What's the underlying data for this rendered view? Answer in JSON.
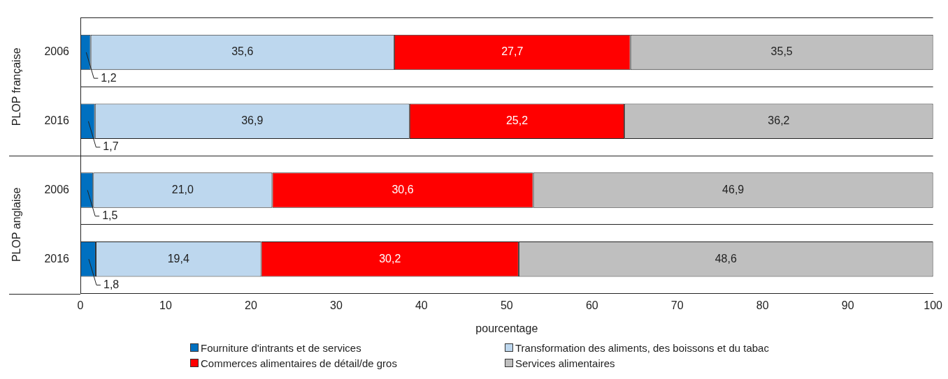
{
  "chart_data": {
    "type": "bar",
    "orientation": "horizontal",
    "stacked": true,
    "categories": [
      "2006",
      "2016",
      "2006",
      "2016"
    ],
    "annotations": [
      "PLOP française",
      "PLOP anglaise"
    ],
    "xlabel": "pourcentage",
    "xlim": [
      0,
      100
    ],
    "xticks": [
      0,
      10,
      20,
      30,
      40,
      50,
      60,
      70,
      80,
      90,
      100
    ],
    "grid": "y",
    "legend": "bottom",
    "series": [
      {
        "name": "Fourniture d'intrants et de services",
        "color": "#0070c0",
        "values": [
          1.2,
          1.7,
          1.5,
          1.8
        ],
        "value_labels": [
          "1,2",
          "1,7",
          "1,5",
          "1,8"
        ]
      },
      {
        "name": "Transformation des aliments, des boissons et du tabac",
        "color": "#bdd7ee",
        "values": [
          35.6,
          36.9,
          21.0,
          19.4
        ],
        "value_labels": [
          "35,6",
          "36,9",
          "21,0",
          "19,4"
        ]
      },
      {
        "name": "Commerces alimentaires de détail/de gros",
        "color": "#ff0000",
        "values": [
          27.7,
          25.2,
          30.6,
          30.2
        ],
        "value_labels": [
          "27,7",
          "25,2",
          "30,6",
          "30,2"
        ]
      },
      {
        "name": "Services alimentaires",
        "color": "#bfbfbf",
        "values": [
          35.5,
          36.2,
          46.9,
          48.6
        ],
        "value_labels": [
          "35,5",
          "36,2",
          "46,9",
          "48,6"
        ]
      }
    ]
  }
}
